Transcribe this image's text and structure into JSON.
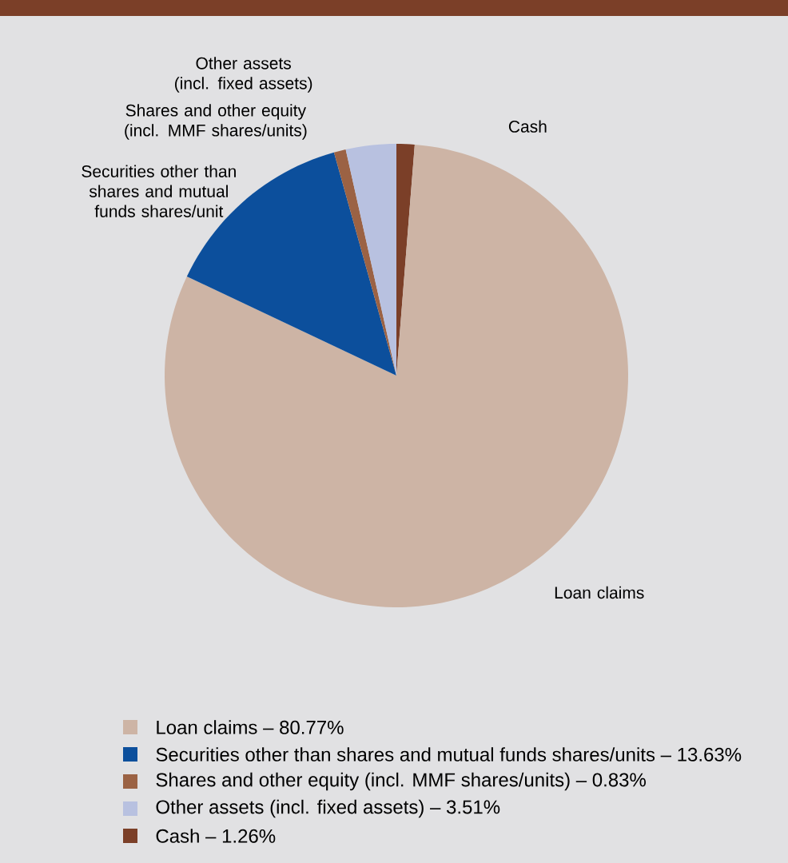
{
  "chart_data": {
    "type": "pie",
    "legend": "bottom",
    "categories": [
      "Cash – 1.26%",
      "Loan claims – 80.77%",
      "Securities other than shares and mutual funds shares/units – 13.63%",
      "Shares and other equity (incl. MMF shares/units) – 0.83%",
      "Other assets (incl. fixed assets) – 3.51%"
    ],
    "values": [
      1.26,
      80.77,
      13.63,
      0.83,
      3.51
    ],
    "colors": [
      "#7b3f28",
      "#cdb4a5",
      "#0c4f9c",
      "#9b6244",
      "#b8c1e0"
    ],
    "annotations": [
      "Cash",
      "Loan claims",
      "Securities other than shares and mutual funds shares/unit",
      "Shares and other equity (incl. MMF shares/units)",
      "Other assets (incl. fixed assets)"
    ]
  }
}
